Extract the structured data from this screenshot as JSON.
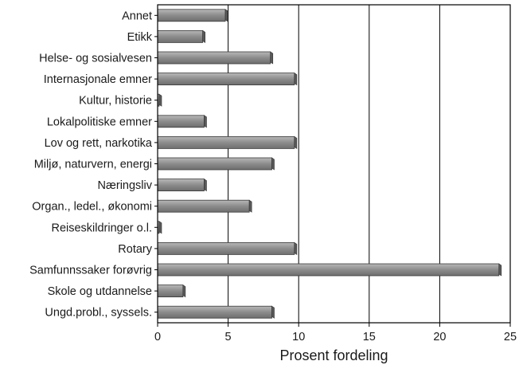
{
  "chart_data": {
    "type": "bar",
    "orientation": "horizontal",
    "categories": [
      "Annet",
      "Etikk",
      "Helse- og sosialvesen",
      "Internasjonale emner",
      "Kultur, historie",
      "Lokalpolitiske emner",
      "Lov og rett, narkotika",
      "Miljø, naturvern, energi",
      "Næringsliv",
      "Organ., ledel., økonomi",
      "Reiseskildringer o.l.",
      "Rotary",
      "Samfunnssaker forøvrig",
      "Skole og utdannelse",
      "Ungd.probl., syssels."
    ],
    "values": [
      4.8,
      3.2,
      8.0,
      9.7,
      0.1,
      3.3,
      9.7,
      8.1,
      3.3,
      6.5,
      0.1,
      9.7,
      24.2,
      1.8,
      8.1
    ],
    "xlabel": "Prosent fordeling",
    "ylabel": "",
    "title": "",
    "xlim": [
      0,
      25
    ],
    "xticks": [
      0,
      5,
      10,
      15,
      20,
      25
    ],
    "grid": "vertical",
    "legend": "none",
    "colors": {
      "bar": "#8a8a8a",
      "bar_top": "#c8c8c8",
      "grid": "#000000"
    }
  }
}
